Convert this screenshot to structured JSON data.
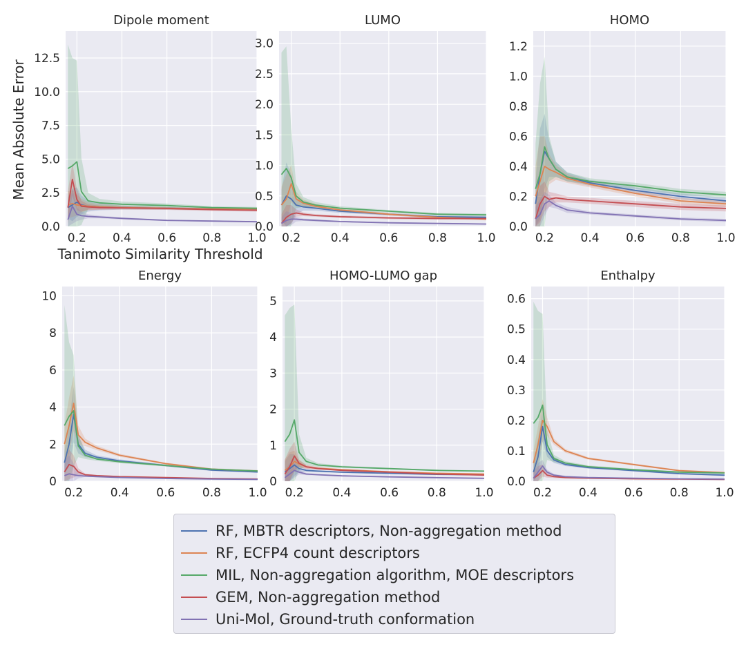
{
  "figure": {
    "ylabel": "Mean Absolute Error",
    "xlabel": "Tanimoto Similarity Threshold"
  },
  "legend": [
    {
      "name": "RF, MBTR descriptors, Non-aggregation method",
      "color": "#4c72b0"
    },
    {
      "name": "RF, ECFP4 count descriptors",
      "color": "#dd8452"
    },
    {
      "name": "MIL, Non-aggregation algorithm, MOE descriptors",
      "color": "#55a868"
    },
    {
      "name": "GEM, Non-aggregation method",
      "color": "#c44e52"
    },
    {
      "name": "Uni-Mol, Ground-truth conformation",
      "color": "#8172b3"
    }
  ],
  "chart_data": [
    {
      "type": "line",
      "title": "Dipole moment",
      "xlim": [
        0.15,
        1.0
      ],
      "ylim": [
        0,
        14.5
      ],
      "xticks": [
        "0.2",
        "0.4",
        "0.6",
        "0.8",
        "1.0"
      ],
      "yticks": [
        "0.0",
        "2.5",
        "5.0",
        "7.5",
        "10.0",
        "12.5"
      ],
      "x": [
        0.16,
        0.18,
        0.2,
        0.22,
        0.25,
        0.3,
        0.4,
        0.6,
        0.8,
        1.0
      ],
      "series": [
        {
          "values": [
            1.4,
            1.6,
            1.8,
            1.6,
            1.5,
            1.45,
            1.4,
            1.35,
            1.3,
            1.25
          ],
          "band": [
            0.8,
            1.2,
            1.1,
            0.7,
            0.4,
            0.25,
            0.15,
            0.1,
            0.08,
            0.08
          ]
        },
        {
          "values": [
            1.6,
            1.7,
            1.6,
            1.55,
            1.5,
            1.45,
            1.4,
            1.35,
            1.3,
            1.3
          ],
          "band": [
            1.0,
            1.0,
            0.8,
            0.5,
            0.3,
            0.2,
            0.15,
            0.1,
            0.1,
            0.1
          ]
        },
        {
          "values": [
            4.3,
            4.5,
            4.8,
            2.6,
            1.9,
            1.75,
            1.65,
            1.55,
            1.4,
            1.35
          ],
          "band": [
            9.2,
            8.0,
            7.5,
            2.5,
            0.6,
            0.3,
            0.2,
            0.15,
            0.1,
            0.1
          ]
        },
        {
          "values": [
            1.4,
            3.5,
            2.0,
            1.5,
            1.45,
            1.4,
            1.38,
            1.33,
            1.25,
            1.2
          ],
          "band": [
            1.2,
            1.2,
            0.8,
            0.4,
            0.2,
            0.15,
            0.1,
            0.1,
            0.1,
            0.1
          ]
        },
        {
          "values": [
            0.5,
            1.5,
            0.9,
            0.8,
            0.75,
            0.7,
            0.6,
            0.45,
            0.4,
            0.35
          ],
          "band": [
            0.5,
            1.3,
            0.5,
            0.3,
            0.15,
            0.1,
            0.08,
            0.05,
            0.05,
            0.05
          ]
        }
      ]
    },
    {
      "type": "line",
      "title": "LUMO",
      "xlim": [
        0.15,
        1.0
      ],
      "ylim": [
        0,
        3.2
      ],
      "xticks": [
        "0.2",
        "0.4",
        "0.6",
        "0.8",
        "1.0"
      ],
      "yticks": [
        "0.0",
        "0.5",
        "1.0",
        "1.5",
        "2.0",
        "2.5",
        "3.0"
      ],
      "x": [
        0.16,
        0.18,
        0.2,
        0.22,
        0.25,
        0.3,
        0.4,
        0.6,
        0.8,
        1.0
      ],
      "series": [
        {
          "values": [
            0.35,
            0.5,
            0.45,
            0.35,
            0.32,
            0.3,
            0.25,
            0.2,
            0.16,
            0.15
          ],
          "band": [
            0.25,
            0.55,
            0.4,
            0.15,
            0.06,
            0.04,
            0.03,
            0.02,
            0.02,
            0.02
          ]
        },
        {
          "values": [
            0.35,
            0.45,
            0.7,
            0.45,
            0.38,
            0.33,
            0.27,
            0.2,
            0.15,
            0.12
          ],
          "band": [
            0.3,
            0.4,
            0.3,
            0.12,
            0.06,
            0.04,
            0.03,
            0.02,
            0.02,
            0.02
          ]
        },
        {
          "values": [
            0.85,
            0.95,
            0.8,
            0.5,
            0.4,
            0.35,
            0.3,
            0.25,
            0.2,
            0.19
          ],
          "band": [
            2.0,
            2.0,
            0.8,
            0.2,
            0.08,
            0.05,
            0.03,
            0.02,
            0.02,
            0.02
          ]
        },
        {
          "values": [
            0.05,
            0.15,
            0.2,
            0.22,
            0.2,
            0.18,
            0.16,
            0.14,
            0.13,
            0.13
          ],
          "band": [
            0.15,
            0.2,
            0.15,
            0.06,
            0.03,
            0.02,
            0.02,
            0.02,
            0.02,
            0.02
          ]
        },
        {
          "values": [
            0.05,
            0.1,
            0.12,
            0.12,
            0.11,
            0.1,
            0.08,
            0.06,
            0.05,
            0.04
          ],
          "band": [
            0.1,
            0.15,
            0.1,
            0.04,
            0.02,
            0.02,
            0.01,
            0.01,
            0.01,
            0.01
          ]
        }
      ]
    },
    {
      "type": "line",
      "title": "HOMO",
      "xlim": [
        0.15,
        1.0
      ],
      "ylim": [
        0,
        1.3
      ],
      "xticks": [
        "0.2",
        "0.4",
        "0.6",
        "0.8",
        "1.0"
      ],
      "yticks": [
        "0.0",
        "0.2",
        "0.4",
        "0.6",
        "0.8",
        "1.0",
        "1.2"
      ],
      "x": [
        0.16,
        0.18,
        0.2,
        0.22,
        0.25,
        0.3,
        0.4,
        0.6,
        0.8,
        1.0
      ],
      "series": [
        {
          "values": [
            0.15,
            0.35,
            0.5,
            0.45,
            0.38,
            0.33,
            0.29,
            0.24,
            0.2,
            0.17
          ],
          "band": [
            0.15,
            0.3,
            0.25,
            0.12,
            0.05,
            0.03,
            0.02,
            0.02,
            0.02,
            0.02
          ]
        },
        {
          "values": [
            0.2,
            0.3,
            0.4,
            0.38,
            0.36,
            0.32,
            0.28,
            0.22,
            0.17,
            0.15
          ],
          "band": [
            0.2,
            0.3,
            0.2,
            0.1,
            0.05,
            0.03,
            0.02,
            0.02,
            0.02,
            0.02
          ]
        },
        {
          "values": [
            0.25,
            0.35,
            0.53,
            0.45,
            0.38,
            0.33,
            0.3,
            0.27,
            0.23,
            0.21
          ],
          "band": [
            0.3,
            0.6,
            0.6,
            0.15,
            0.05,
            0.03,
            0.02,
            0.02,
            0.02,
            0.02
          ]
        },
        {
          "values": [
            0.05,
            0.15,
            0.2,
            0.18,
            0.19,
            0.18,
            0.17,
            0.15,
            0.13,
            0.12
          ],
          "band": [
            0.1,
            0.12,
            0.1,
            0.05,
            0.03,
            0.02,
            0.02,
            0.02,
            0.02,
            0.02
          ]
        },
        {
          "values": [
            0.05,
            0.08,
            0.15,
            0.17,
            0.14,
            0.11,
            0.09,
            0.07,
            0.05,
            0.04
          ],
          "band": [
            0.08,
            0.1,
            0.08,
            0.04,
            0.02,
            0.02,
            0.01,
            0.01,
            0.01,
            0.01
          ]
        }
      ]
    },
    {
      "type": "line",
      "title": "Energy",
      "xlim": [
        0.15,
        1.0
      ],
      "ylim": [
        0,
        10.5
      ],
      "xticks": [
        "0.2",
        "0.4",
        "0.6",
        "0.8",
        "1.0"
      ],
      "yticks": [
        "0",
        "2",
        "4",
        "6",
        "8",
        "10"
      ],
      "x": [
        0.16,
        0.18,
        0.2,
        0.22,
        0.25,
        0.3,
        0.4,
        0.6,
        0.8,
        1.0
      ],
      "series": [
        {
          "values": [
            1.0,
            2.0,
            3.6,
            2.0,
            1.5,
            1.3,
            1.1,
            0.85,
            0.6,
            0.5
          ],
          "band": [
            0.6,
            1.2,
            1.5,
            0.5,
            0.2,
            0.1,
            0.08,
            0.05,
            0.05,
            0.05
          ]
        },
        {
          "values": [
            2.0,
            3.0,
            4.2,
            2.5,
            2.1,
            1.8,
            1.4,
            0.95,
            0.65,
            0.55
          ],
          "band": [
            1.0,
            1.5,
            1.5,
            0.5,
            0.2,
            0.12,
            0.08,
            0.05,
            0.05,
            0.05
          ]
        },
        {
          "values": [
            3.0,
            3.5,
            3.8,
            1.9,
            1.4,
            1.2,
            1.05,
            0.85,
            0.65,
            0.55
          ],
          "band": [
            6.5,
            4.0,
            3.0,
            0.6,
            0.2,
            0.1,
            0.08,
            0.05,
            0.05,
            0.05
          ]
        },
        {
          "values": [
            0.5,
            0.9,
            0.8,
            0.5,
            0.35,
            0.3,
            0.25,
            0.2,
            0.15,
            0.12
          ],
          "band": [
            0.5,
            0.8,
            0.6,
            0.2,
            0.06,
            0.04,
            0.03,
            0.02,
            0.02,
            0.02
          ]
        },
        {
          "values": [
            0.3,
            0.4,
            0.35,
            0.3,
            0.28,
            0.25,
            0.2,
            0.15,
            0.12,
            0.1
          ],
          "band": [
            0.8,
            1.0,
            0.6,
            0.15,
            0.05,
            0.03,
            0.02,
            0.02,
            0.02,
            0.02
          ]
        }
      ]
    },
    {
      "type": "line",
      "title": "HOMO-LUMO gap",
      "xlim": [
        0.15,
        1.0
      ],
      "ylim": [
        0,
        5.4
      ],
      "xticks": [
        "0.2",
        "0.4",
        "0.6",
        "0.8",
        "1.0"
      ],
      "yticks": [
        "0",
        "1",
        "2",
        "3",
        "4",
        "5"
      ],
      "x": [
        0.16,
        0.18,
        0.2,
        0.22,
        0.25,
        0.3,
        0.4,
        0.6,
        0.8,
        1.0
      ],
      "series": [
        {
          "values": [
            0.25,
            0.35,
            0.45,
            0.35,
            0.3,
            0.28,
            0.25,
            0.22,
            0.19,
            0.18
          ],
          "band": [
            0.3,
            0.4,
            0.3,
            0.1,
            0.04,
            0.03,
            0.02,
            0.02,
            0.02,
            0.02
          ]
        },
        {
          "values": [
            0.3,
            0.4,
            0.55,
            0.48,
            0.4,
            0.36,
            0.32,
            0.26,
            0.22,
            0.2
          ],
          "band": [
            0.3,
            0.4,
            0.3,
            0.1,
            0.05,
            0.03,
            0.02,
            0.02,
            0.02,
            0.02
          ]
        },
        {
          "values": [
            1.1,
            1.3,
            1.7,
            0.8,
            0.55,
            0.45,
            0.4,
            0.35,
            0.3,
            0.28
          ],
          "band": [
            3.5,
            3.5,
            3.2,
            0.5,
            0.1,
            0.05,
            0.03,
            0.02,
            0.02,
            0.02
          ]
        },
        {
          "values": [
            0.2,
            0.4,
            0.7,
            0.5,
            0.4,
            0.35,
            0.3,
            0.25,
            0.2,
            0.17
          ],
          "band": [
            0.4,
            0.5,
            0.4,
            0.1,
            0.05,
            0.03,
            0.02,
            0.02,
            0.02,
            0.02
          ]
        },
        {
          "values": [
            0.1,
            0.2,
            0.3,
            0.25,
            0.2,
            0.18,
            0.15,
            0.12,
            0.1,
            0.08
          ],
          "band": [
            0.2,
            0.3,
            0.2,
            0.06,
            0.03,
            0.02,
            0.02,
            0.01,
            0.01,
            0.01
          ]
        }
      ]
    },
    {
      "type": "line",
      "title": "Enthalpy",
      "xlim": [
        0.15,
        1.0
      ],
      "ylim": [
        0,
        0.64
      ],
      "xticks": [
        "0.2",
        "0.4",
        "0.6",
        "0.8",
        "1.0"
      ],
      "yticks": [
        "0.0",
        "0.1",
        "0.2",
        "0.3",
        "0.4",
        "0.5",
        "0.6"
      ],
      "x": [
        0.16,
        0.18,
        0.2,
        0.22,
        0.25,
        0.3,
        0.4,
        0.6,
        0.8,
        1.0
      ],
      "series": [
        {
          "values": [
            0.03,
            0.08,
            0.18,
            0.1,
            0.07,
            0.055,
            0.045,
            0.035,
            0.025,
            0.02
          ],
          "band": [
            0.03,
            0.06,
            0.05,
            0.02,
            0.01,
            0.005,
            0.004,
            0.003,
            0.003,
            0.003
          ]
        },
        {
          "values": [
            0.06,
            0.12,
            0.2,
            0.18,
            0.13,
            0.1,
            0.075,
            0.055,
            0.035,
            0.028
          ],
          "band": [
            0.04,
            0.06,
            0.07,
            0.03,
            0.01,
            0.006,
            0.004,
            0.003,
            0.003,
            0.003
          ]
        },
        {
          "values": [
            0.19,
            0.21,
            0.25,
            0.12,
            0.075,
            0.06,
            0.048,
            0.038,
            0.03,
            0.027
          ],
          "band": [
            0.4,
            0.35,
            0.3,
            0.05,
            0.012,
            0.006,
            0.004,
            0.003,
            0.003,
            0.003
          ]
        },
        {
          "values": [
            0.01,
            0.02,
            0.035,
            0.02,
            0.015,
            0.012,
            0.01,
            0.008,
            0.007,
            0.006
          ],
          "band": [
            0.02,
            0.03,
            0.02,
            0.008,
            0.004,
            0.003,
            0.002,
            0.002,
            0.002,
            0.002
          ]
        },
        {
          "values": [
            0.01,
            0.03,
            0.05,
            0.03,
            0.02,
            0.015,
            0.012,
            0.01,
            0.008,
            0.007
          ],
          "band": [
            0.02,
            0.03,
            0.02,
            0.008,
            0.004,
            0.003,
            0.002,
            0.002,
            0.002,
            0.002
          ]
        }
      ]
    }
  ]
}
